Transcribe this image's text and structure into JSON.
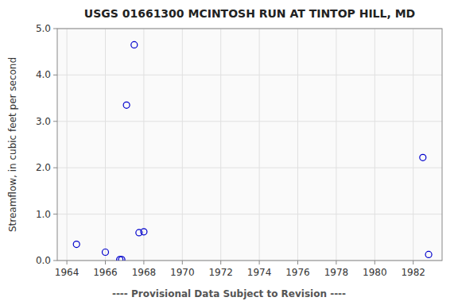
{
  "chart_data": {
    "type": "scatter",
    "title": "USGS 01661300 MCINTOSH RUN AT TINTOP HILL, MD",
    "ylabel": "Streamflow, in cubic feet per second",
    "annotations": [
      "---- Provisional Data Subject to Revision ----"
    ],
    "x": [
      1964.5,
      1966.0,
      1966.75,
      1966.85,
      1967.1,
      1967.5,
      1967.75,
      1968.0,
      1982.5,
      1982.8
    ],
    "values": [
      0.35,
      0.18,
      0.02,
      0.02,
      3.35,
      4.65,
      0.6,
      0.62,
      2.22,
      0.13
    ],
    "color": "#0000cc",
    "marker": "circle",
    "xlim": [
      1963.5,
      1983.5
    ],
    "ylim": [
      0.0,
      5.0
    ],
    "xticks": [
      1964,
      1966,
      1968,
      1970,
      1972,
      1974,
      1976,
      1978,
      1980,
      1982
    ],
    "yticks": [
      {
        "value": 0.0,
        "label": "0.0"
      },
      {
        "value": 1.0,
        "label": "1.0"
      },
      {
        "value": 2.0,
        "label": "2.0"
      },
      {
        "value": 3.0,
        "label": "3.0"
      },
      {
        "value": 4.0,
        "label": "4.0"
      },
      {
        "value": 5.0,
        "label": "5.0"
      }
    ],
    "grid": true
  }
}
